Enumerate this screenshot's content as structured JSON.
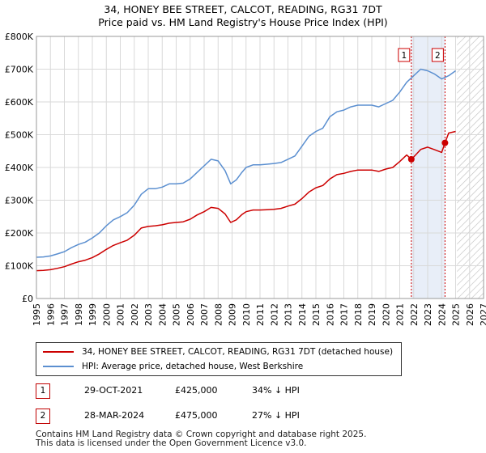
{
  "title_line1": "34, HONEY BEE STREET, CALCOT, READING, RG31 7DT",
  "title_line2": "Price paid vs. HM Land Registry's House Price Index (HPI)",
  "legend": {
    "red_label": "34, HONEY BEE STREET, CALCOT, READING, RG31 7DT (detached house)",
    "blue_label": "HPI: Average price, detached house, West Berkshire"
  },
  "transactions": [
    {
      "num": "1",
      "date": "29-OCT-2021",
      "price": "£425,000",
      "diff": "34% ↓ HPI"
    },
    {
      "num": "2",
      "date": "28-MAR-2024",
      "price": "£475,000",
      "diff": "27% ↓ HPI"
    }
  ],
  "footer": {
    "line1": "Contains HM Land Registry data © Crown copyright and database right 2025.",
    "line2": "This data is licensed under the Open Government Licence v3.0."
  },
  "colors": {
    "red": "#cc0000",
    "blue": "#5b8fd0",
    "shade": "#e8eef8",
    "grid": "#d9d9d9"
  },
  "chart_data": {
    "type": "line",
    "xlim": [
      1995,
      2027
    ],
    "ylim": [
      0,
      800000
    ],
    "yticks": [
      0,
      100000,
      200000,
      300000,
      400000,
      500000,
      600000,
      700000,
      800000
    ],
    "ytick_labels": [
      "£0",
      "£100K",
      "£200K",
      "£300K",
      "£400K",
      "£500K",
      "£600K",
      "£700K",
      "£800K"
    ],
    "xticks": [
      1995,
      1996,
      1997,
      1998,
      1999,
      2000,
      2001,
      2002,
      2003,
      2004,
      2005,
      2006,
      2007,
      2008,
      2009,
      2010,
      2011,
      2012,
      2013,
      2014,
      2015,
      2016,
      2017,
      2018,
      2019,
      2020,
      2021,
      2022,
      2023,
      2024,
      2025,
      2026,
      2027
    ],
    "shaded_range": [
      2021.83,
      2024.24
    ],
    "future_from": 2025.1,
    "series": [
      {
        "name": "HPI: Average price, detached house, West Berkshire",
        "color": "#5b8fd0",
        "x": [
          1995.0,
          1995.5,
          1996.0,
          1996.5,
          1997.0,
          1997.5,
          1998.0,
          1998.5,
          1999.0,
          1999.5,
          2000.0,
          2000.5,
          2001.0,
          2001.5,
          2002.0,
          2002.5,
          2003.0,
          2003.5,
          2004.0,
          2004.5,
          2005.0,
          2005.5,
          2006.0,
          2006.5,
          2007.0,
          2007.5,
          2008.0,
          2008.5,
          2008.9,
          2009.3,
          2009.7,
          2010.0,
          2010.5,
          2011.0,
          2011.5,
          2012.0,
          2012.5,
          2013.0,
          2013.5,
          2014.0,
          2014.5,
          2015.0,
          2015.5,
          2016.0,
          2016.5,
          2017.0,
          2017.5,
          2018.0,
          2018.5,
          2019.0,
          2019.5,
          2020.0,
          2020.5,
          2021.0,
          2021.5,
          2022.0,
          2022.5,
          2023.0,
          2023.5,
          2024.0,
          2024.5,
          2025.0
        ],
        "y": [
          126000,
          127000,
          130000,
          136000,
          143000,
          155000,
          165000,
          172000,
          185000,
          200000,
          222000,
          240000,
          250000,
          262000,
          285000,
          318000,
          335000,
          335000,
          340000,
          350000,
          350000,
          352000,
          365000,
          385000,
          405000,
          425000,
          420000,
          390000,
          350000,
          362000,
          385000,
          400000,
          408000,
          408000,
          410000,
          412000,
          415000,
          425000,
          435000,
          465000,
          495000,
          510000,
          520000,
          555000,
          570000,
          575000,
          585000,
          590000,
          590000,
          590000,
          585000,
          595000,
          605000,
          630000,
          660000,
          680000,
          700000,
          695000,
          685000,
          670000,
          680000,
          695000
        ]
      },
      {
        "name": "34, HONEY BEE STREET, CALCOT, READING, RG31 7DT (detached house)",
        "color": "#cc0000",
        "x": [
          1995.0,
          1995.5,
          1996.0,
          1996.5,
          1997.0,
          1997.5,
          1998.0,
          1998.5,
          1999.0,
          1999.5,
          2000.0,
          2000.5,
          2001.0,
          2001.5,
          2002.0,
          2002.5,
          2003.0,
          2003.5,
          2004.0,
          2004.5,
          2005.0,
          2005.5,
          2006.0,
          2006.5,
          2007.0,
          2007.5,
          2008.0,
          2008.5,
          2008.9,
          2009.3,
          2009.7,
          2010.0,
          2010.5,
          2011.0,
          2011.5,
          2012.0,
          2012.5,
          2013.0,
          2013.5,
          2014.0,
          2014.5,
          2015.0,
          2015.5,
          2016.0,
          2016.5,
          2017.0,
          2017.5,
          2018.0,
          2018.5,
          2019.0,
          2019.5,
          2020.0,
          2020.5,
          2021.0,
          2021.5,
          2021.83,
          2022.0,
          2022.5,
          2023.0,
          2023.5,
          2024.0,
          2024.24,
          2024.5,
          2025.0
        ],
        "y": [
          85000,
          86000,
          88000,
          92000,
          97000,
          105000,
          112000,
          117000,
          125000,
          136000,
          150000,
          162000,
          170000,
          178000,
          193000,
          215000,
          220000,
          222000,
          225000,
          230000,
          232000,
          234000,
          242000,
          255000,
          265000,
          278000,
          275000,
          258000,
          232000,
          240000,
          256000,
          265000,
          270000,
          270000,
          271000,
          272000,
          275000,
          282000,
          288000,
          305000,
          325000,
          338000,
          345000,
          365000,
          378000,
          382000,
          388000,
          392000,
          392000,
          392000,
          388000,
          395000,
          400000,
          418000,
          438000,
          425000,
          432000,
          455000,
          462000,
          454000,
          446000,
          475000,
          505000,
          510000
        ]
      }
    ],
    "markers": [
      {
        "label": "1",
        "x": 2021.83,
        "y": 425000
      },
      {
        "label": "2",
        "x": 2024.24,
        "y": 475000
      }
    ]
  }
}
